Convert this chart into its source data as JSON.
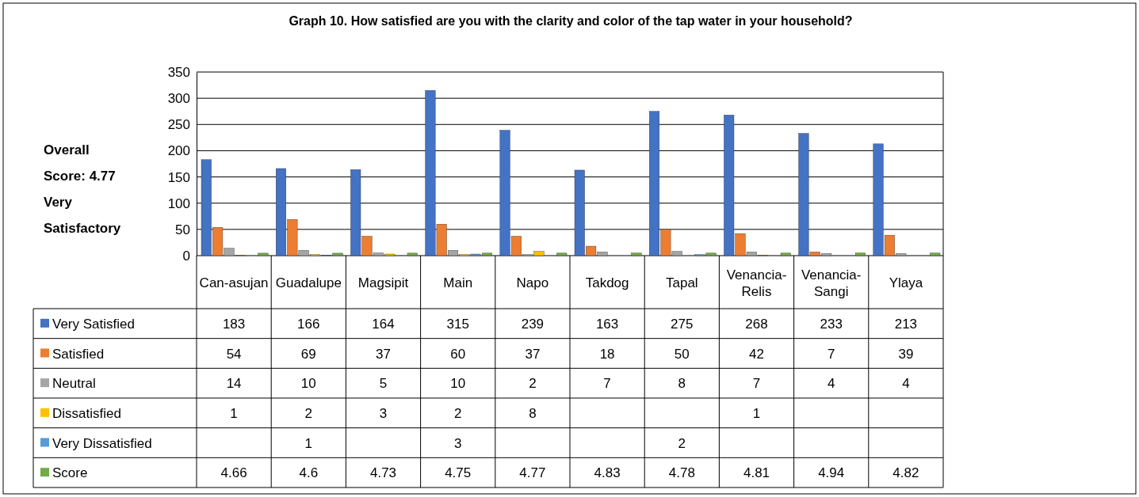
{
  "chart_data": {
    "type": "bar",
    "title": "Graph 10. How satisfied are you with the clarity and color of the tap water in your household?",
    "categories": [
      "Can-asujan",
      "Guadalupe",
      "Magsipit",
      "Main",
      "Napo",
      "Takdog",
      "Tapal",
      "Venancia-Relis",
      "Venancia-Sangi",
      "Ylaya"
    ],
    "series": [
      {
        "name": "Very Satisfied",
        "color": "#4472c4",
        "values": [
          183,
          166,
          164,
          315,
          239,
          163,
          275,
          268,
          233,
          213
        ]
      },
      {
        "name": "Satisfied",
        "color": "#ed7d31",
        "values": [
          54,
          69,
          37,
          60,
          37,
          18,
          50,
          42,
          7,
          39
        ]
      },
      {
        "name": "Neutral",
        "color": "#a5a5a5",
        "values": [
          14,
          10,
          5,
          10,
          2,
          7,
          8,
          7,
          4,
          4
        ]
      },
      {
        "name": "Dissatisfied",
        "color": "#ffc000",
        "values": [
          1,
          2,
          3,
          2,
          8,
          null,
          null,
          1,
          null,
          null
        ]
      },
      {
        "name": "Very Dissatisfied",
        "color": "#5b9bd5",
        "values": [
          null,
          1,
          null,
          3,
          null,
          null,
          2,
          null,
          null,
          null
        ]
      },
      {
        "name": "Score",
        "color": "#70ad47",
        "values": [
          4.66,
          4.6,
          4.73,
          4.75,
          4.77,
          4.83,
          4.78,
          4.81,
          4.94,
          4.82
        ]
      }
    ],
    "ylim": [
      0,
      350
    ],
    "yticks": [
      0,
      50,
      100,
      150,
      200,
      250,
      300,
      350
    ],
    "grid": "y",
    "legend": "bottom",
    "data_labels": true,
    "annotations": [
      "Overall Score: 4.77 Very Satisfactory"
    ]
  }
}
